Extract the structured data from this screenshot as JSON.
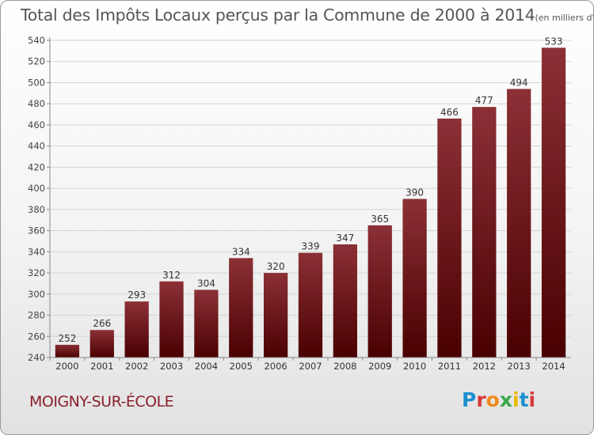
{
  "title": "Total des Impôts Locaux perçus par la Commune de 2000 à 2014",
  "subtitle": "(en milliers d'€)",
  "commune": "MOIGNY-SUR-ÉCOLE",
  "logo": "Proxiti",
  "colors": {
    "bar_top": "#8b3036",
    "bar_bottom": "#4a0000",
    "commune_text": "#8a1f2c"
  },
  "chart_data": {
    "type": "bar",
    "categories": [
      "2000",
      "2001",
      "2002",
      "2003",
      "2004",
      "2005",
      "2006",
      "2007",
      "2008",
      "2009",
      "2010",
      "2011",
      "2012",
      "2013",
      "2014"
    ],
    "values": [
      252,
      266,
      293,
      312,
      304,
      334,
      320,
      339,
      347,
      365,
      390,
      466,
      477,
      494,
      533
    ],
    "ylim": [
      240,
      540
    ],
    "yticks": [
      240,
      260,
      280,
      300,
      320,
      340,
      360,
      380,
      400,
      420,
      440,
      460,
      480,
      500,
      520,
      540
    ],
    "grid": true
  }
}
